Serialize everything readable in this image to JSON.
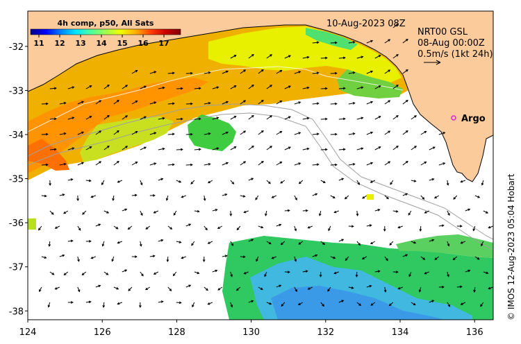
{
  "product_label": "4h comp, p50, All Sats",
  "date_label": "10-Aug-2023 08Z",
  "current_product": "NRT00 GSL",
  "current_time": "08-Aug 00:00Z",
  "scale_label": "0.5m/s (1kt 24h)",
  "argo_label": "Argo",
  "credit": "© IMOS 12-Aug-2023 05:04 Hobart",
  "colorbar": {
    "ticks": [
      "11",
      "12",
      "13",
      "14",
      "15",
      "16",
      "17"
    ],
    "min": 10.6,
    "max": 17.8,
    "stops": [
      "#00007f",
      "#0000ff",
      "#0080ff",
      "#00e5ff",
      "#4dff9e",
      "#a0ff50",
      "#f0ff00",
      "#ffb000",
      "#ff4000",
      "#cc0000",
      "#7f0000"
    ]
  },
  "axes": {
    "lon_ticks": [
      "124",
      "126",
      "128",
      "130",
      "132",
      "134",
      "136"
    ],
    "lat_ticks": [
      "-32",
      "-33",
      "-34",
      "-35",
      "-36",
      "-37",
      "-38"
    ],
    "lon_range": [
      124,
      136.5
    ],
    "lat_range": [
      -38.2,
      -31.2
    ]
  },
  "colors": {
    "land": "#fccb9c",
    "no_data": "#ffffff",
    "argo_marker": "#e020e0",
    "arrows": "#000000",
    "contour": "#a0a0a0"
  }
}
